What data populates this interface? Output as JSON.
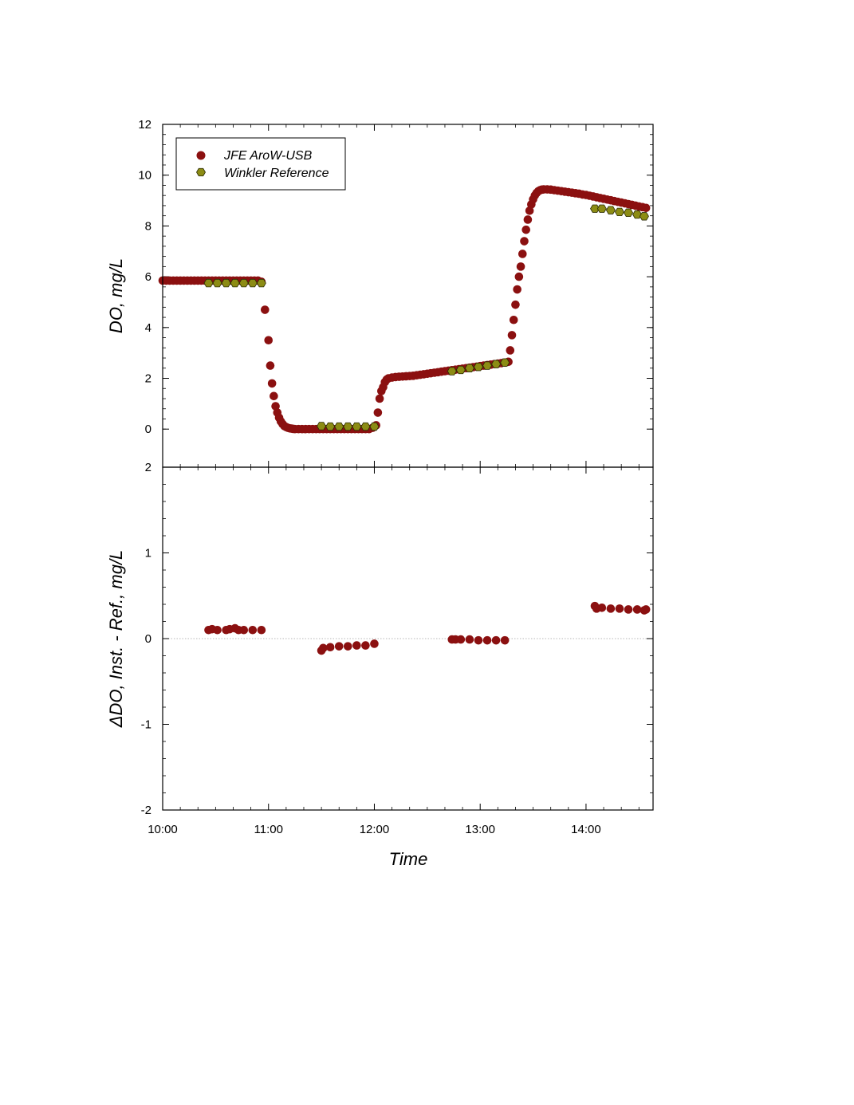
{
  "chart_data": {
    "type": "scatter",
    "xlabel": "Time",
    "x_ticks": [
      "10:00",
      "11:00",
      "12:00",
      "13:00",
      "14:00"
    ],
    "x_tick_hours": [
      10,
      11,
      12,
      13,
      14
    ],
    "xlim": [
      "10:00",
      "14:38"
    ],
    "colors": {
      "instrument": "#8b1010",
      "reference": "#8c8c14"
    },
    "panels": [
      {
        "name": "top",
        "ylabel": "DO, mg/L",
        "ylim": [
          -1.5,
          12
        ],
        "y_ticks": [
          0,
          2,
          4,
          6,
          8,
          10,
          12
        ],
        "legend": {
          "placement": "top-left",
          "entries": [
            {
              "series": "JFE AroW-USB",
              "label": "JFE AroW-USB"
            },
            {
              "series": "Winkler Reference",
              "label": "Winkler Reference"
            }
          ]
        },
        "series": [
          {
            "name": "JFE AroW-USB",
            "marker": "circle",
            "points": [
              [
                "10:00",
                5.85
              ],
              [
                "10:02",
                5.85
              ],
              [
                "10:04",
                5.85
              ],
              [
                "10:06",
                5.85
              ],
              [
                "10:08",
                5.85
              ],
              [
                "10:10",
                5.85
              ],
              [
                "10:12",
                5.85
              ],
              [
                "10:14",
                5.85
              ],
              [
                "10:16",
                5.85
              ],
              [
                "10:18",
                5.85
              ],
              [
                "10:20",
                5.85
              ],
              [
                "10:22",
                5.85
              ],
              [
                "10:24",
                5.85
              ],
              [
                "10:26",
                5.85
              ],
              [
                "10:28",
                5.85
              ],
              [
                "10:30",
                5.85
              ],
              [
                "10:32",
                5.85
              ],
              [
                "10:34",
                5.85
              ],
              [
                "10:36",
                5.85
              ],
              [
                "10:38",
                5.85
              ],
              [
                "10:40",
                5.85
              ],
              [
                "10:42",
                5.85
              ],
              [
                "10:44",
                5.85
              ],
              [
                "10:46",
                5.85
              ],
              [
                "10:48",
                5.85
              ],
              [
                "10:50",
                5.85
              ],
              [
                "10:52",
                5.85
              ],
              [
                "10:54",
                5.85
              ],
              [
                "10:56",
                5.8
              ],
              [
                "10:58",
                4.7
              ],
              [
                "11:00",
                3.5
              ],
              [
                "11:01",
                2.5
              ],
              [
                "11:02",
                1.8
              ],
              [
                "11:03",
                1.3
              ],
              [
                "11:04",
                0.9
              ],
              [
                "11:05",
                0.65
              ],
              [
                "11:06",
                0.45
              ],
              [
                "11:07",
                0.3
              ],
              [
                "11:08",
                0.2
              ],
              [
                "11:09",
                0.12
              ],
              [
                "11:10",
                0.08
              ],
              [
                "11:11",
                0.05
              ],
              [
                "11:12",
                0.03
              ],
              [
                "11:13",
                0.02
              ],
              [
                "11:14",
                0.01
              ],
              [
                "11:15",
                0.0
              ],
              [
                "11:17",
                0.0
              ],
              [
                "11:19",
                0.0
              ],
              [
                "11:21",
                0.0
              ],
              [
                "11:23",
                0.0
              ],
              [
                "11:25",
                0.0
              ],
              [
                "11:27",
                0.0
              ],
              [
                "11:29",
                0.0
              ],
              [
                "11:31",
                0.0
              ],
              [
                "11:33",
                0.0
              ],
              [
                "11:35",
                0.0
              ],
              [
                "11:37",
                0.0
              ],
              [
                "11:39",
                0.0
              ],
              [
                "11:41",
                0.0
              ],
              [
                "11:43",
                0.0
              ],
              [
                "11:45",
                0.0
              ],
              [
                "11:47",
                0.0
              ],
              [
                "11:49",
                0.0
              ],
              [
                "11:51",
                0.0
              ],
              [
                "11:53",
                0.0
              ],
              [
                "11:55",
                0.0
              ],
              [
                "11:57",
                0.0
              ],
              [
                "11:59",
                0.05
              ],
              [
                "12:01",
                0.15
              ],
              [
                "12:02",
                0.65
              ],
              [
                "12:03",
                1.2
              ],
              [
                "12:04",
                1.5
              ],
              [
                "12:05",
                1.65
              ],
              [
                "12:06",
                1.85
              ],
              [
                "12:07",
                1.95
              ],
              [
                "12:08",
                2.0
              ],
              [
                "12:10",
                2.03
              ],
              [
                "12:12",
                2.05
              ],
              [
                "12:14",
                2.06
              ],
              [
                "12:16",
                2.07
              ],
              [
                "12:18",
                2.08
              ],
              [
                "12:20",
                2.09
              ],
              [
                "12:22",
                2.1
              ],
              [
                "12:24",
                2.12
              ],
              [
                "12:26",
                2.14
              ],
              [
                "12:28",
                2.16
              ],
              [
                "12:30",
                2.18
              ],
              [
                "12:32",
                2.2
              ],
              [
                "12:34",
                2.22
              ],
              [
                "12:36",
                2.24
              ],
              [
                "12:38",
                2.26
              ],
              [
                "12:40",
                2.28
              ],
              [
                "12:42",
                2.3
              ],
              [
                "12:44",
                2.32
              ],
              [
                "12:46",
                2.34
              ],
              [
                "12:48",
                2.36
              ],
              [
                "12:50",
                2.38
              ],
              [
                "12:52",
                2.4
              ],
              [
                "12:54",
                2.42
              ],
              [
                "12:56",
                2.44
              ],
              [
                "12:58",
                2.46
              ],
              [
                "13:00",
                2.48
              ],
              [
                "13:02",
                2.5
              ],
              [
                "13:04",
                2.52
              ],
              [
                "13:06",
                2.54
              ],
              [
                "13:08",
                2.56
              ],
              [
                "13:10",
                2.58
              ],
              [
                "13:12",
                2.6
              ],
              [
                "13:14",
                2.62
              ],
              [
                "13:16",
                2.65
              ],
              [
                "13:17",
                3.1
              ],
              [
                "13:18",
                3.7
              ],
              [
                "13:19",
                4.3
              ],
              [
                "13:20",
                4.9
              ],
              [
                "13:21",
                5.5
              ],
              [
                "13:22",
                6.0
              ],
              [
                "13:23",
                6.4
              ],
              [
                "13:24",
                6.9
              ],
              [
                "13:25",
                7.4
              ],
              [
                "13:26",
                7.85
              ],
              [
                "13:27",
                8.25
              ],
              [
                "13:28",
                8.6
              ],
              [
                "13:29",
                8.85
              ],
              [
                "13:30",
                9.05
              ],
              [
                "13:31",
                9.2
              ],
              [
                "13:32",
                9.3
              ],
              [
                "13:33",
                9.37
              ],
              [
                "13:34",
                9.41
              ],
              [
                "13:35",
                9.43
              ],
              [
                "13:36",
                9.44
              ],
              [
                "13:38",
                9.44
              ],
              [
                "13:40",
                9.43
              ],
              [
                "13:42",
                9.41
              ],
              [
                "13:44",
                9.39
              ],
              [
                "13:46",
                9.37
              ],
              [
                "13:48",
                9.35
              ],
              [
                "13:50",
                9.33
              ],
              [
                "13:52",
                9.31
              ],
              [
                "13:54",
                9.29
              ],
              [
                "13:56",
                9.27
              ],
              [
                "13:58",
                9.24
              ],
              [
                "14:00",
                9.22
              ],
              [
                "14:02",
                9.19
              ],
              [
                "14:04",
                9.16
              ],
              [
                "14:06",
                9.13
              ],
              [
                "14:08",
                9.1
              ],
              [
                "14:10",
                9.07
              ],
              [
                "14:12",
                9.04
              ],
              [
                "14:14",
                9.01
              ],
              [
                "14:16",
                8.98
              ],
              [
                "14:18",
                8.95
              ],
              [
                "14:20",
                8.92
              ],
              [
                "14:22",
                8.89
              ],
              [
                "14:24",
                8.86
              ],
              [
                "14:26",
                8.83
              ],
              [
                "14:28",
                8.8
              ],
              [
                "14:30",
                8.77
              ],
              [
                "14:32",
                8.74
              ],
              [
                "14:34",
                8.71
              ]
            ]
          },
          {
            "name": "Winkler Reference",
            "marker": "hexagon",
            "points": [
              [
                "10:26",
                5.75
              ],
              [
                "10:31",
                5.75
              ],
              [
                "10:36",
                5.75
              ],
              [
                "10:41",
                5.75
              ],
              [
                "10:46",
                5.75
              ],
              [
                "10:51",
                5.75
              ],
              [
                "10:56",
                5.75
              ],
              [
                "11:30",
                0.12
              ],
              [
                "11:35",
                0.1
              ],
              [
                "11:40",
                0.1
              ],
              [
                "11:45",
                0.1
              ],
              [
                "11:50",
                0.1
              ],
              [
                "11:55",
                0.1
              ],
              [
                "12:00",
                0.1
              ],
              [
                "12:44",
                2.28
              ],
              [
                "12:49",
                2.33
              ],
              [
                "12:54",
                2.4
              ],
              [
                "12:59",
                2.45
              ],
              [
                "13:04",
                2.5
              ],
              [
                "13:09",
                2.56
              ],
              [
                "13:14",
                2.62
              ],
              [
                "14:05",
                8.68
              ],
              [
                "14:09",
                8.68
              ],
              [
                "14:14",
                8.62
              ],
              [
                "14:19",
                8.55
              ],
              [
                "14:24",
                8.52
              ],
              [
                "14:29",
                8.45
              ],
              [
                "14:33",
                8.38
              ]
            ]
          }
        ]
      },
      {
        "name": "bottom",
        "ylabel": "ΔDO, Inst. - Ref., mg/L",
        "ylim": [
          -2,
          2
        ],
        "y_ticks": [
          -2,
          -1,
          0,
          1,
          2
        ],
        "zero_line": true,
        "series": [
          {
            "name": "JFE AroW-USB",
            "marker": "circle",
            "points": [
              [
                "10:26",
                0.1
              ],
              [
                "10:28",
                0.11
              ],
              [
                "10:31",
                0.1
              ],
              [
                "10:36",
                0.1
              ],
              [
                "10:38",
                0.11
              ],
              [
                "10:41",
                0.12
              ],
              [
                "10:43",
                0.1
              ],
              [
                "10:46",
                0.1
              ],
              [
                "10:51",
                0.1
              ],
              [
                "10:56",
                0.1
              ],
              [
                "11:30",
                -0.14
              ],
              [
                "11:31",
                -0.11
              ],
              [
                "11:35",
                -0.1
              ],
              [
                "11:40",
                -0.09
              ],
              [
                "11:45",
                -0.09
              ],
              [
                "11:50",
                -0.08
              ],
              [
                "11:55",
                -0.08
              ],
              [
                "12:00",
                -0.06
              ],
              [
                "12:44",
                -0.01
              ],
              [
                "12:46",
                -0.01
              ],
              [
                "12:49",
                -0.01
              ],
              [
                "12:54",
                -0.01
              ],
              [
                "12:59",
                -0.02
              ],
              [
                "13:04",
                -0.02
              ],
              [
                "13:09",
                -0.02
              ],
              [
                "13:14",
                -0.02
              ],
              [
                "14:05",
                0.38
              ],
              [
                "14:06",
                0.35
              ],
              [
                "14:09",
                0.36
              ],
              [
                "14:14",
                0.35
              ],
              [
                "14:19",
                0.35
              ],
              [
                "14:24",
                0.34
              ],
              [
                "14:29",
                0.34
              ],
              [
                "14:33",
                0.33
              ],
              [
                "14:34",
                0.34
              ]
            ]
          }
        ]
      }
    ]
  }
}
